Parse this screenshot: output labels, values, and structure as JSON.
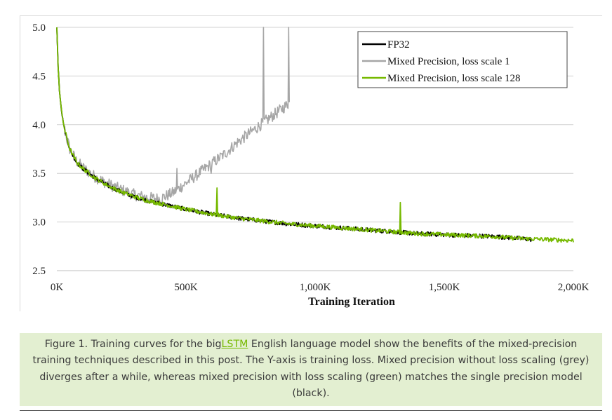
{
  "chart_data": {
    "type": "line",
    "title": "",
    "xlabel": "Training Iteration",
    "ylabel": "",
    "xlim": [
      0,
      2000000
    ],
    "ylim": [
      2.5,
      5.0
    ],
    "x_tick_values": [
      0,
      500000,
      1000000,
      1500000,
      2000000
    ],
    "x_tick_labels": [
      "0K",
      "500K",
      "1,000K",
      "1,500K",
      "2,000K"
    ],
    "y_tick_values": [
      2.5,
      3.0,
      3.5,
      4.0,
      4.5,
      5.0
    ],
    "y_tick_labels": [
      "2.5",
      "3.0",
      "3.5",
      "4.0",
      "4.5",
      "5.0"
    ],
    "grid": "horizontal",
    "legend_position": "top-right",
    "series": [
      {
        "name": "FP32",
        "color": "#000000",
        "x": [
          0,
          5000,
          10000,
          20000,
          30000,
          50000,
          75000,
          100000,
          150000,
          200000,
          250000,
          300000,
          350000,
          400000,
          500000,
          600000,
          700000,
          800000,
          900000,
          1000000,
          1100000,
          1200000,
          1300000,
          1400000,
          1500000,
          1600000,
          1700000,
          1800000,
          1840000
        ],
        "y": [
          5.0,
          4.6,
          4.35,
          4.1,
          3.95,
          3.75,
          3.62,
          3.55,
          3.45,
          3.37,
          3.31,
          3.26,
          3.22,
          3.19,
          3.13,
          3.08,
          3.04,
          3.01,
          2.98,
          2.96,
          2.94,
          2.92,
          2.9,
          2.88,
          2.87,
          2.86,
          2.85,
          2.83,
          2.82
        ],
        "noise": 0.022
      },
      {
        "name": "Mixed Precision, loss scale 1",
        "color": "#a6a6a6",
        "x": [
          0,
          5000,
          10000,
          20000,
          30000,
          50000,
          75000,
          100000,
          150000,
          200000,
          250000,
          300000,
          350000,
          400000,
          450000,
          500000,
          550000,
          600000,
          650000,
          700000,
          750000,
          800000,
          850000,
          900000
        ],
        "y": [
          5.0,
          4.6,
          4.35,
          4.1,
          3.95,
          3.75,
          3.63,
          3.56,
          3.46,
          3.39,
          3.33,
          3.28,
          3.25,
          3.24,
          3.3,
          3.4,
          3.5,
          3.6,
          3.7,
          3.82,
          3.92,
          4.02,
          4.12,
          4.22
        ],
        "noise": 0.06,
        "spikes": [
          {
            "x": 465000,
            "y": 3.55
          },
          {
            "x": 597000,
            "y": 3.5
          },
          {
            "x": 800000,
            "y": 5.0
          },
          {
            "x": 897000,
            "y": 5.0
          }
        ]
      },
      {
        "name": "Mixed Precision, loss scale 128",
        "color": "#76b900",
        "x": [
          0,
          5000,
          10000,
          20000,
          30000,
          50000,
          75000,
          100000,
          150000,
          200000,
          250000,
          300000,
          350000,
          400000,
          500000,
          600000,
          700000,
          800000,
          900000,
          1000000,
          1100000,
          1200000,
          1300000,
          1400000,
          1500000,
          1600000,
          1700000,
          1800000,
          1900000,
          2000000
        ],
        "y": [
          5.0,
          4.6,
          4.35,
          4.1,
          3.95,
          3.75,
          3.62,
          3.55,
          3.45,
          3.37,
          3.31,
          3.26,
          3.22,
          3.19,
          3.13,
          3.08,
          3.04,
          3.01,
          2.98,
          2.96,
          2.94,
          2.92,
          2.9,
          2.88,
          2.87,
          2.86,
          2.85,
          2.83,
          2.82,
          2.81
        ],
        "noise": 0.022,
        "spikes": [
          {
            "x": 620000,
            "y": 3.35
          },
          {
            "x": 1330000,
            "y": 3.2
          }
        ]
      }
    ]
  },
  "caption": {
    "before_link": "Figure 1. Training curves for the big",
    "link_text": "LSTM",
    "after_link": " English language model show the benefits of the mixed-precision training techniques described in this post.  The Y-axis is training loss. Mixed precision without loss scaling (grey) diverges after a while, whereas mixed precision with loss scaling (green) matches the single precision model (black)."
  }
}
